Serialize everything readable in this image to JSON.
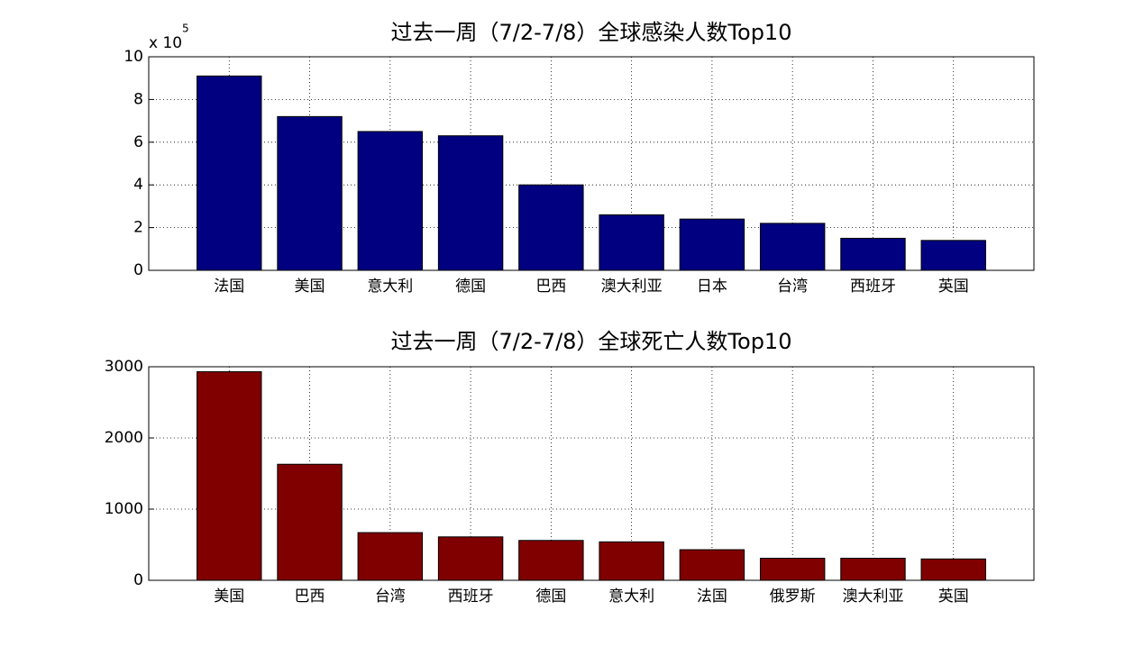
{
  "chart_data": [
    {
      "type": "bar",
      "title": "过去一周（7/2-7/8）全球感染人数Top10",
      "categories": [
        "法国",
        "美国",
        "意大利",
        "德国",
        "巴西",
        "澳大利亚",
        "日本",
        "台湾",
        "西班牙",
        "英国"
      ],
      "values": [
        9.1,
        7.2,
        6.5,
        6.3,
        4.0,
        2.6,
        2.4,
        2.2,
        1.5,
        1.4
      ],
      "color": "#000080",
      "ylim": [
        0,
        10
      ],
      "yticks": [
        0,
        2,
        4,
        6,
        8,
        10
      ],
      "y_multiplier": "x 10",
      "y_exponent": 5,
      "grid": true
    },
    {
      "type": "bar",
      "title": "过去一周（7/2-7/8）全球死亡人数Top10",
      "categories": [
        "美国",
        "巴西",
        "台湾",
        "西班牙",
        "德国",
        "意大利",
        "法国",
        "俄罗斯",
        "澳大利亚",
        "英国"
      ],
      "values": [
        2930,
        1630,
        670,
        610,
        560,
        540,
        430,
        310,
        310,
        300
      ],
      "color": "#800000",
      "ylim": [
        0,
        3000
      ],
      "yticks": [
        0,
        1000,
        2000,
        3000
      ],
      "grid": true
    }
  ]
}
